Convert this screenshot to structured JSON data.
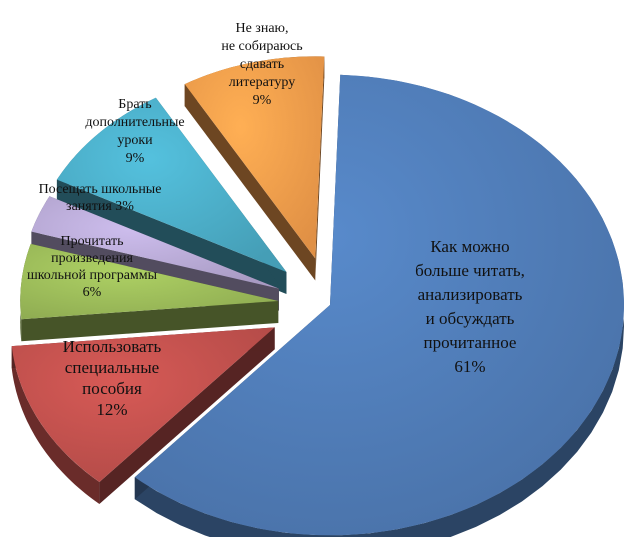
{
  "chart_data": {
    "type": "pie",
    "title": "",
    "categories": [
      "Как можно больше читать, анализировать и обсуждать прочитанное",
      "Использовать специальные пособия",
      "Прочитать произведения школьной программы",
      "Посещать школьные занятия",
      "Брать дополнительные уроки",
      "Не знаю, не собираюсь сдавать литературу"
    ],
    "values": [
      61,
      12,
      6,
      3,
      9,
      9
    ],
    "colors": [
      "#4F7BB5",
      "#C0504D",
      "#9BBB59",
      "#B7A9D4",
      "#4BACC6",
      "#F39C4B"
    ],
    "labels": [
      {
        "lines": [
          "Как можно",
          "больше читать,",
          "анализировать",
          "и обсуждать",
          "прочитанное",
          "61%"
        ]
      },
      {
        "lines": [
          "Использовать",
          "специальные",
          "пособия",
          "12%"
        ]
      },
      {
        "lines": [
          "Прочитать",
          "произведения",
          "школьной программы",
          "6%"
        ]
      },
      {
        "lines": [
          "Посещать школьные",
          "занятия 3%"
        ]
      },
      {
        "lines": [
          "Брать",
          "дополнительные",
          "уроки",
          "9%"
        ]
      },
      {
        "lines": [
          "Не знаю,",
          "не собираюсь",
          "сдавать",
          "литературу",
          "9%"
        ]
      }
    ],
    "legend": "none",
    "style": "3d-exploded"
  }
}
